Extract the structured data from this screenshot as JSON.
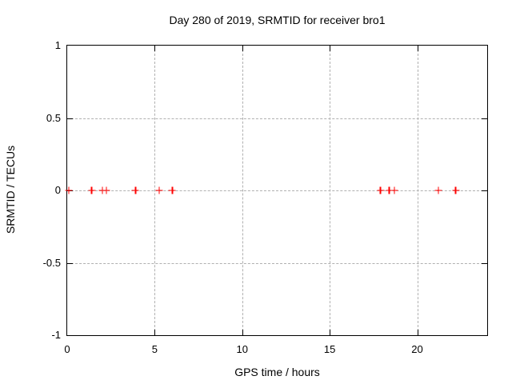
{
  "chart_data": {
    "type": "scatter",
    "title": "Day 280 of 2019, SRMTID for receiver bro1",
    "xlabel": "GPS time / hours",
    "ylabel": "SRMTID / TECUs",
    "xlim": [
      0,
      24
    ],
    "ylim": [
      -1,
      1
    ],
    "xticks": [
      0,
      5,
      10,
      15,
      20
    ],
    "xtick_labels": [
      "0",
      "5",
      "10",
      "15",
      "20"
    ],
    "yticks": [
      1,
      0.5,
      0,
      -0.5,
      -1
    ],
    "ytick_labels": [
      "1",
      "0.5",
      "0",
      "-0.5",
      "-1"
    ],
    "grid": true,
    "legend": "none",
    "marker": "plus",
    "series": [
      {
        "name": "SRMTID",
        "color": "#ff0000",
        "x": [
          0.1,
          1.4,
          2.0,
          2.25,
          3.9,
          5.25,
          6.0,
          17.9,
          18.4,
          18.7,
          21.2,
          22.2
        ],
        "y": [
          0,
          0,
          0,
          0,
          0,
          0,
          0,
          0,
          0,
          0,
          0,
          0
        ]
      }
    ]
  },
  "colors": {
    "marker": "#ff0000",
    "grid": "#b0b0b0",
    "axis": "#000000",
    "text": "#000000",
    "background": "#ffffff"
  }
}
